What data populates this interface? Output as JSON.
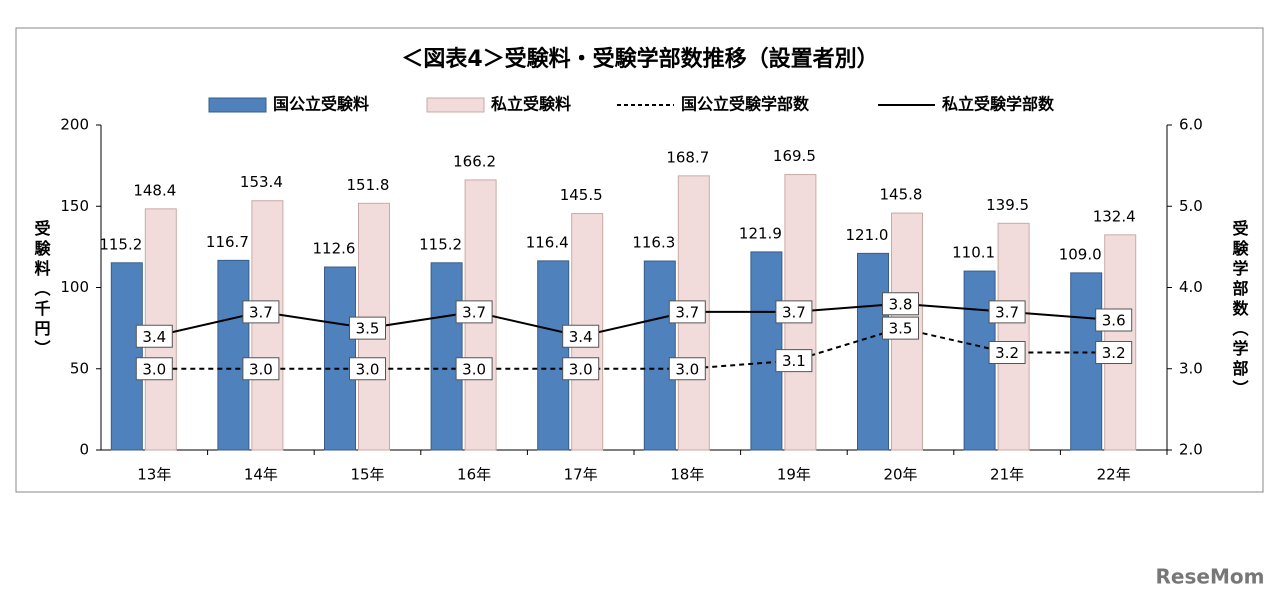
{
  "chart_data": {
    "type": "bar",
    "title": "＜図表4＞受験料・受験学部数推移（設置者別）",
    "y_label": "受験料（千円）",
    "y2_label": "受験学部数（学部）",
    "categories": [
      "13年",
      "14年",
      "15年",
      "16年",
      "17年",
      "18年",
      "19年",
      "20年",
      "21年",
      "22年"
    ],
    "ylim": [
      0,
      200
    ],
    "yticks": [
      0,
      50,
      100,
      150,
      200
    ],
    "y2lim": [
      2.0,
      6.0
    ],
    "y2ticks": [
      {
        "value": 2,
        "label": "2.0"
      },
      {
        "value": 3,
        "label": "3.0"
      },
      {
        "value": 4,
        "label": "4.0"
      },
      {
        "value": 5,
        "label": "5.0"
      },
      {
        "value": 6,
        "label": "6.0"
      }
    ],
    "grid": false,
    "series": [
      {
        "name": "国公立受験料",
        "type": "bar",
        "color": "#4f81bd",
        "values": [
          115.2,
          116.7,
          112.6,
          115.2,
          116.4,
          116.3,
          121.9,
          121.0,
          110.1,
          109.0
        ],
        "value_labels": [
          "115.2",
          "116.7",
          "112.6",
          "115.2",
          "116.4",
          "116.3",
          "121.9",
          "121.0",
          "110.1",
          "109.0"
        ]
      },
      {
        "name": "私立受験料",
        "type": "bar",
        "color": "#f2dcdb",
        "values": [
          148.4,
          153.4,
          151.8,
          166.2,
          145.5,
          168.7,
          169.5,
          145.8,
          139.5,
          132.4
        ],
        "value_labels": [
          "148.4",
          "153.4",
          "151.8",
          "166.2",
          "145.5",
          "168.7",
          "169.5",
          "145.8",
          "139.5",
          "132.4"
        ]
      },
      {
        "name": "国公立受験学部数",
        "type": "line",
        "axis": "y2",
        "linestyle": "dashed",
        "color": "#000000",
        "values": [
          3.0,
          3.0,
          3.0,
          3.0,
          3.0,
          3.0,
          3.1,
          3.5,
          3.2,
          3.2
        ],
        "value_labels": [
          "3.0",
          "3.0",
          "3.0",
          "3.0",
          "3.0",
          "3.0",
          "3.1",
          "3.5",
          "3.2",
          "3.2"
        ]
      },
      {
        "name": "私立受験学部数",
        "type": "line",
        "axis": "y2",
        "linestyle": "solid",
        "color": "#000000",
        "values": [
          3.4,
          3.7,
          3.5,
          3.7,
          3.4,
          3.7,
          3.7,
          3.8,
          3.7,
          3.6
        ],
        "value_labels": [
          "3.4",
          "3.7",
          "3.5",
          "3.7",
          "3.4",
          "3.7",
          "3.7",
          "3.8",
          "3.7",
          "3.6"
        ]
      }
    ],
    "watermark": "ReseMom"
  }
}
